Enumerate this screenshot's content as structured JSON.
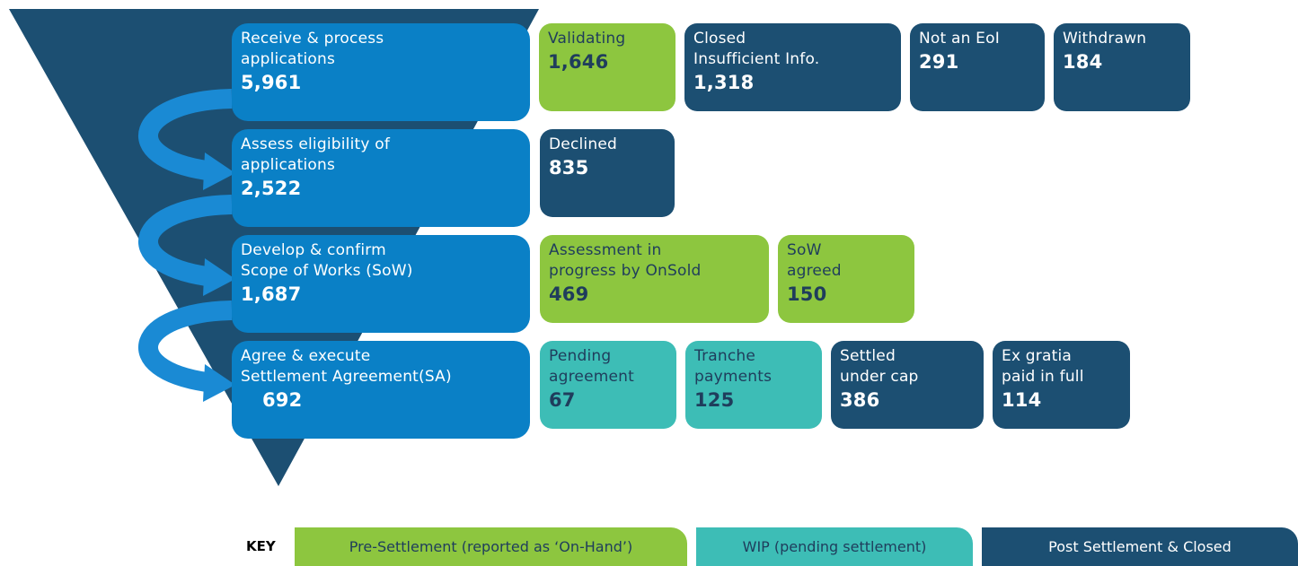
{
  "stages": [
    {
      "lines": [
        "Receive & process",
        "applications"
      ],
      "value": "5,961"
    },
    {
      "lines": [
        "Assess eligibility of",
        "applications"
      ],
      "value": "2,522"
    },
    {
      "lines": [
        "Develop & confirm",
        "Scope of Works (SoW)"
      ],
      "value": "1,687"
    },
    {
      "lines": [
        "Agree & execute",
        "Settlement Agreement(SA)"
      ],
      "value": "692"
    }
  ],
  "outcomes": [
    [
      {
        "lines": [
          "Validating"
        ],
        "value": "1,646",
        "key": 0
      },
      {
        "lines": [
          "Closed",
          "Insufficient Info."
        ],
        "value": "1,318",
        "key": 2
      },
      {
        "lines": [
          "Not an EoI"
        ],
        "value": "291",
        "key": 2
      },
      {
        "lines": [
          "Withdrawn"
        ],
        "value": "184",
        "key": 2
      }
    ],
    [
      {
        "lines": [
          "Declined"
        ],
        "value": "835",
        "key": 2
      }
    ],
    [
      {
        "lines": [
          "Assessment in",
          "progress by OnSold"
        ],
        "value": "469",
        "key": 0
      },
      {
        "lines": [
          "SoW",
          "agreed"
        ],
        "value": "150",
        "key": 0
      }
    ],
    [
      {
        "lines": [
          "Pending",
          "agreement"
        ],
        "value": "67",
        "key": 1
      },
      {
        "lines": [
          "Tranche",
          "payments"
        ],
        "value": "125",
        "key": 1
      },
      {
        "lines": [
          "Settled",
          "under cap"
        ],
        "value": "386",
        "key": 2
      },
      {
        "lines": [
          "Ex gratia",
          "paid in full"
        ],
        "value": "114",
        "key": 2
      }
    ]
  ],
  "key_title": "KEY",
  "key": [
    {
      "label": "Pre-Settlement (reported as ‘On-Hand’)",
      "color": "#8dc63f",
      "text": "#1f3d5c"
    },
    {
      "label": "WIP (pending settlement)",
      "color": "#3dbdb6",
      "text": "#1f3d5c"
    },
    {
      "label": "Post Settlement & Closed",
      "color": "#1c4f72",
      "text": "#ffffff"
    }
  ]
}
